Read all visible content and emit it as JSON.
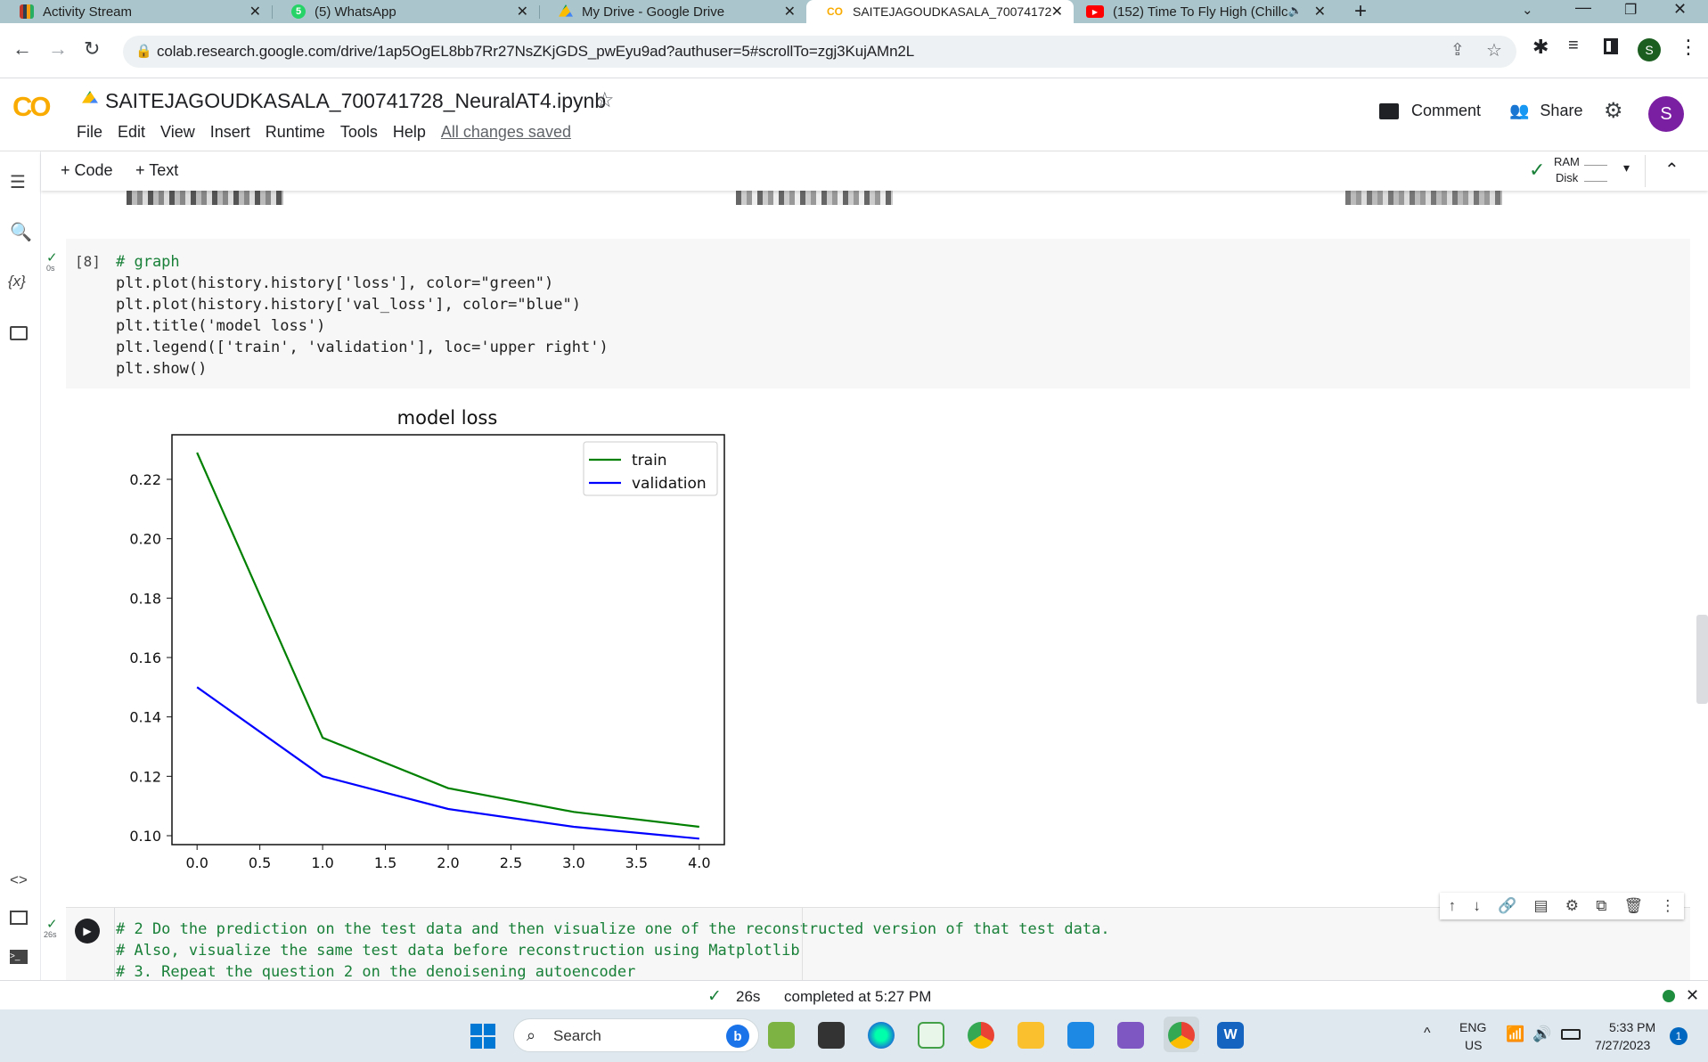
{
  "browser": {
    "tabs": [
      {
        "title": "Activity Stream",
        "icon": "activity-icon"
      },
      {
        "title": "(5) WhatsApp",
        "icon": "whatsapp-icon"
      },
      {
        "title": "My Drive - Google Drive",
        "icon": "drive-icon"
      },
      {
        "title": "SAITEJAGOUDKASALA_70074172",
        "icon": "colab-icon"
      },
      {
        "title": "(152) Time To Fly High (Chillc",
        "icon": "youtube-icon"
      }
    ],
    "url": "colab.research.google.com/drive/1ap5OgEL8bb7Rr27NsZKjGDS_pwEyu9ad?authuser=5#scrollTo=zgj3KujAMn2L",
    "profile_initial": "S"
  },
  "colab": {
    "logo": "CO",
    "notebook_title": "SAITEJAGOUDKASALA_700741728_NeuralAT4.ipynb",
    "menu": [
      "File",
      "Edit",
      "View",
      "Insert",
      "Runtime",
      "Tools",
      "Help"
    ],
    "saved_status": "All changes saved",
    "comment_label": "Comment",
    "share_label": "Share",
    "avatar_initial": "S",
    "add_code": "+ Code",
    "add_text": "+ Text",
    "ram_label": "RAM",
    "disk_label": "Disk"
  },
  "cell1": {
    "exec_count": "[8]",
    "exec_time": "0s",
    "lines": [
      "# graph",
      "plt.plot(history.history['loss'], color=\"green\")",
      "plt.plot(history.history['val_loss'], color=\"blue\")",
      "plt.title('model loss')",
      "plt.legend(['train', 'validation'], loc='upper right')",
      "plt.show()"
    ]
  },
  "chart_data": {
    "type": "line",
    "title": "model loss",
    "x": [
      0,
      1,
      2,
      3,
      4
    ],
    "series": [
      {
        "name": "train",
        "color": "#008000",
        "values": [
          0.229,
          0.133,
          0.116,
          0.108,
          0.103
        ]
      },
      {
        "name": "validation",
        "color": "#0000ff",
        "values": [
          0.15,
          0.12,
          0.109,
          0.103,
          0.099
        ]
      }
    ],
    "xlim": [
      -0.2,
      4.2
    ],
    "ylim": [
      0.097,
      0.235
    ],
    "xticks": [
      "0.0",
      "0.5",
      "1.0",
      "1.5",
      "2.0",
      "2.5",
      "3.0",
      "3.5",
      "4.0"
    ],
    "yticks": [
      "0.10",
      "0.12",
      "0.14",
      "0.16",
      "0.18",
      "0.20",
      "0.22"
    ],
    "legend_position": "upper right",
    "grid": false
  },
  "cell2": {
    "exec_time": "26s",
    "lines": [
      "# 2 Do the prediction on the test data and then visualize one of the reconstructed version of that test data.",
      "# Also, visualize the same test data before reconstruction using Matplotlib",
      "# 3. Repeat the question 2 on the denoisening autoencoder"
    ]
  },
  "status": {
    "time": "26s",
    "completed": "completed at 5:27 PM"
  },
  "taskbar": {
    "search": "Search",
    "lang1": "ENG",
    "lang2": "US",
    "clock_time": "5:33 PM",
    "clock_date": "7/27/2023",
    "notifications": "1"
  }
}
